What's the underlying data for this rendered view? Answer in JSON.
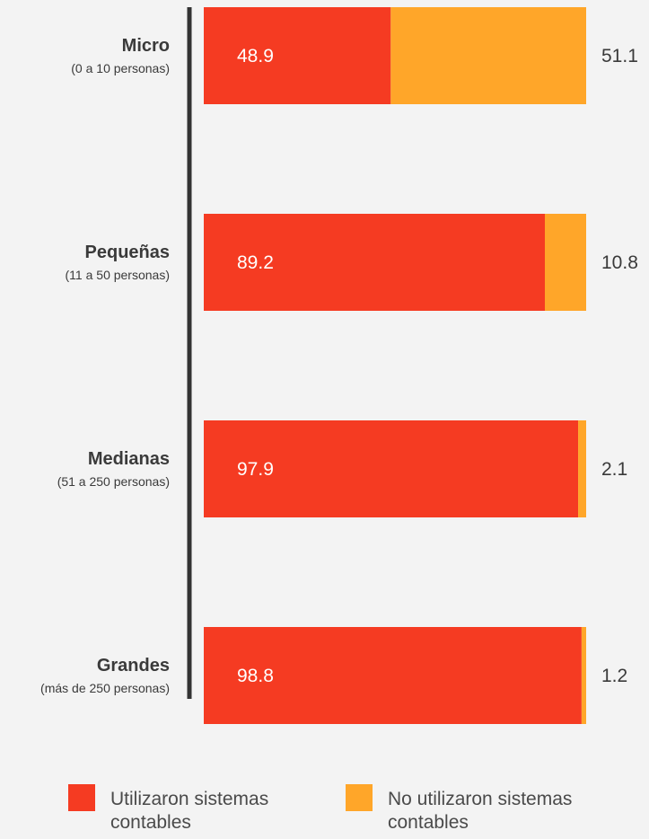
{
  "colors": {
    "used": "#f53b22",
    "not_used": "#ffa629",
    "axis": "#333333"
  },
  "chart_data": {
    "type": "bar",
    "stacked": true,
    "orientation": "horizontal",
    "xlim": [
      0,
      100
    ],
    "categories": [
      {
        "name": "Micro",
        "sub": "(0 a 10 personas)"
      },
      {
        "name": "Pequeñas",
        "sub": "(11 a 50 personas)"
      },
      {
        "name": "Medianas",
        "sub": "(51 a 250 personas)"
      },
      {
        "name": "Grandes",
        "sub": "(más de 250 personas)"
      }
    ],
    "series": [
      {
        "name": "Utilizaron sistemas contables",
        "values": [
          48.9,
          89.2,
          97.9,
          98.8
        ]
      },
      {
        "name": "No utilizaron sistemas contables",
        "values": [
          51.1,
          10.8,
          2.1,
          1.2
        ]
      }
    ],
    "value_labels": {
      "used": [
        "48.9",
        "89.2",
        "97.9",
        "98.8"
      ],
      "not_used": [
        "51.1",
        "10.8",
        "2.1",
        "1.2"
      ]
    },
    "legend_position": "bottom"
  },
  "legend": {
    "used_line1": "Utilizaron sistemas",
    "used_line2": "contables",
    "not_used_line1": "No utilizaron sistemas",
    "not_used_line2": "contables"
  }
}
